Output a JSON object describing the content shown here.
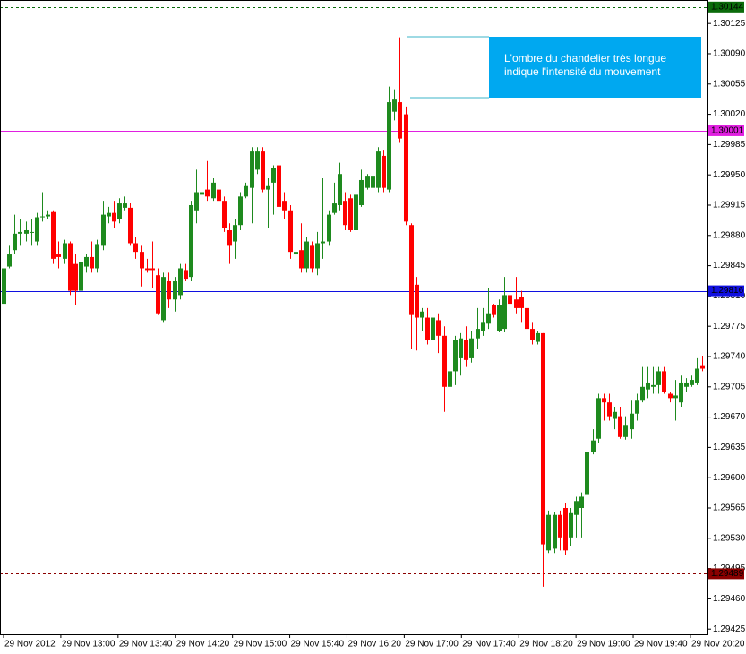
{
  "chart_data": {
    "type": "candlestick",
    "up_color": "#1e8a1e",
    "down_color": "#ff0000",
    "xlim": [
      -0.65,
      127.9
    ],
    "ylim": [
      1.29419,
      1.30149
    ],
    "xticks": [
      {
        "value": 0,
        "label": "29 Nov 2012"
      },
      {
        "value": 10.4,
        "label": "29 Nov 13:00"
      },
      {
        "value": 20.8,
        "label": "29 Nov 13:40"
      },
      {
        "value": 31.2,
        "label": "29 Nov 14:20"
      },
      {
        "value": 41.6,
        "label": "29 Nov 15:00"
      },
      {
        "value": 52,
        "label": "29 Nov 15:40"
      },
      {
        "value": 62.4,
        "label": "29 Nov 16:20"
      },
      {
        "value": 72.8,
        "label": "29 Nov 17:00"
      },
      {
        "value": 83.2,
        "label": "29 Nov 17:40"
      },
      {
        "value": 93.6,
        "label": "29 Nov 18:20"
      },
      {
        "value": 104,
        "label": "29 Nov 19:00"
      },
      {
        "value": 114.4,
        "label": "29 Nov 19:40"
      },
      {
        "value": 124.8,
        "label": "29 Nov 20:20"
      }
    ],
    "yticks": [
      {
        "value": 1.30125,
        "label": "1.30125"
      },
      {
        "value": 1.3009,
        "label": "1.30090"
      },
      {
        "value": 1.30055,
        "label": "1.30055"
      },
      {
        "value": 1.3002,
        "label": "1.30020"
      },
      {
        "value": 1.29985,
        "label": "1.29985"
      },
      {
        "value": 1.2995,
        "label": "1.29950"
      },
      {
        "value": 1.29915,
        "label": "1.29915"
      },
      {
        "value": 1.2988,
        "label": "1.29880"
      },
      {
        "value": 1.29845,
        "label": "1.29845"
      },
      {
        "value": 1.2981,
        "label": "1.29810"
      },
      {
        "value": 1.29775,
        "label": "1.29775"
      },
      {
        "value": 1.2974,
        "label": "1.29740"
      },
      {
        "value": 1.29705,
        "label": "1.29705"
      },
      {
        "value": 1.2967,
        "label": "1.29670"
      },
      {
        "value": 1.29635,
        "label": "1.29635"
      },
      {
        "value": 1.296,
        "label": "1.29600"
      },
      {
        "value": 1.29565,
        "label": "1.29565"
      },
      {
        "value": 1.2953,
        "label": "1.29530"
      },
      {
        "value": 1.29495,
        "label": "1.29495"
      },
      {
        "value": 1.2946,
        "label": "1.29460"
      },
      {
        "value": 1.29425,
        "label": "1.29425"
      }
    ],
    "levels": [
      {
        "value": 1.30144,
        "color": "#0b6b0b",
        "style": "dashed"
      },
      {
        "value": 1.30001,
        "color": "#e020e0",
        "style": "solid"
      },
      {
        "value": 1.29816,
        "color": "#1010e0",
        "style": "solid"
      },
      {
        "value": 1.29489,
        "color": "#8b0000",
        "style": "dashed"
      }
    ],
    "annotation": [
      "L'ombre du chandelier très longue",
      "indique l'intensité du mouvement"
    ],
    "open": [
      1.29801,
      1.29844,
      1.29863,
      1.29882,
      1.29882,
      1.29884,
      1.29873,
      1.29901,
      1.29902,
      1.29907,
      1.29858,
      1.29853,
      1.29871,
      1.29847,
      1.29816,
      1.29844,
      1.29855,
      1.29842,
      1.29868,
      1.29902,
      1.29906,
      1.29899,
      1.29912,
      1.29912,
      1.29871,
      1.29861,
      1.29842,
      1.29842,
      1.29834,
      1.29782,
      1.29827,
      1.29806,
      1.29811,
      1.2984,
      1.29832,
      1.29909,
      1.29927,
      1.29933,
      1.29923,
      1.29933,
      1.2992,
      1.29886,
      1.29873,
      1.29892,
      1.29925,
      1.29935,
      1.29956,
      1.29977,
      1.29933,
      1.29941,
      1.29961,
      1.2992,
      1.29909,
      1.29858,
      1.29863,
      1.29842,
      1.29868,
      1.29842,
      1.29871,
      1.29873,
      1.29906,
      1.29915,
      1.2992,
      1.29923,
      1.29886,
      1.29915,
      1.29935,
      1.29935,
      1.29935,
      1.29972,
      1.29933,
      1.30023,
      1.30034,
      1.3002,
      1.29892,
      1.29823,
      1.29785,
      1.29785,
      1.29759,
      1.29782,
      1.29764,
      1.29705,
      1.29723,
      1.29738,
      1.29759,
      1.29738,
      1.29761,
      1.2977,
      1.29778,
      1.29799,
      1.2977,
      1.29772,
      1.29811,
      1.29806,
      1.29809,
      1.29796,
      1.29772,
      1.29757,
      1.29767,
      1.29516,
      1.29518,
      1.29557,
      1.29565,
      1.29531,
      1.29557,
      1.29565,
      1.29581,
      1.2963,
      1.29645,
      1.29692,
      1.29687,
      1.29668,
      1.29671,
      1.29647,
      1.29656,
      1.29674,
      1.29689,
      1.29702,
      1.29705,
      1.29707,
      1.29723,
      1.29697,
      1.29692,
      1.29687,
      1.29705,
      1.29707,
      1.2971,
      1.2973
    ],
    "high": [
      1.29853,
      1.29868,
      1.29904,
      1.29899,
      1.29896,
      1.29899,
      1.29906,
      1.2993,
      1.29909,
      1.29909,
      1.29873,
      1.29875,
      1.29873,
      1.29858,
      1.29853,
      1.29858,
      1.29873,
      1.29875,
      1.2992,
      1.29913,
      1.2992,
      1.29923,
      1.29925,
      1.29917,
      1.29878,
      1.29868,
      1.29853,
      1.29873,
      1.29842,
      1.29837,
      1.29837,
      1.29832,
      1.29847,
      1.29847,
      1.2992,
      1.29956,
      1.29941,
      1.29966,
      1.29946,
      1.29941,
      1.29925,
      1.29894,
      1.29899,
      1.2993,
      1.29941,
      1.29982,
      1.29982,
      1.29982,
      1.29946,
      1.29961,
      1.29977,
      1.2993,
      1.29915,
      1.29873,
      1.29894,
      1.29878,
      1.29873,
      1.29884,
      1.29946,
      1.29909,
      1.29941,
      1.29964,
      1.2993,
      1.29927,
      1.29946,
      1.29956,
      1.29951,
      1.29956,
      1.29982,
      1.29979,
      1.30052,
      1.30049,
      1.30109,
      1.30029,
      1.29894,
      1.29832,
      1.29796,
      1.29796,
      1.29801,
      1.2979,
      1.29775,
      1.29728,
      1.29764,
      1.29767,
      1.29775,
      1.2977,
      1.29796,
      1.29796,
      1.29819,
      1.29801,
      1.29806,
      1.29832,
      1.29832,
      1.29832,
      1.29816,
      1.29806,
      1.2978,
      1.2977,
      1.29767,
      1.29562,
      1.2956,
      1.29562,
      1.29571,
      1.29565,
      1.29578,
      1.29583,
      1.2964,
      1.29656,
      1.29697,
      1.29697,
      1.29697,
      1.29682,
      1.29682,
      1.29671,
      1.29689,
      1.29697,
      1.29728,
      1.29728,
      1.29728,
      1.29728,
      1.29728,
      1.29699,
      1.29713,
      1.29718,
      1.29715,
      1.29718,
      1.29738,
      1.29741
    ],
    "low": [
      1.29798,
      1.29842,
      1.29858,
      1.29868,
      1.29873,
      1.29868,
      1.29868,
      1.29896,
      1.29899,
      1.29847,
      1.29842,
      1.29847,
      1.29811,
      1.29799,
      1.29811,
      1.29837,
      1.29837,
      1.29837,
      1.29863,
      1.29894,
      1.29889,
      1.29894,
      1.29909,
      1.29868,
      1.29853,
      1.29821,
      1.29837,
      1.29819,
      1.29788,
      1.2978,
      1.29796,
      1.29792,
      1.29806,
      1.29827,
      1.29827,
      1.29894,
      1.29923,
      1.2992,
      1.2992,
      1.29915,
      1.29884,
      1.29847,
      1.29853,
      1.29886,
      1.29923,
      1.29894,
      1.29951,
      1.2993,
      1.29889,
      1.29904,
      1.29899,
      1.29899,
      1.29853,
      1.29847,
      1.29837,
      1.29837,
      1.29837,
      1.29834,
      1.29853,
      1.29868,
      1.29904,
      1.29909,
      1.29886,
      1.29884,
      1.29882,
      1.29913,
      1.29933,
      1.2992,
      1.2993,
      1.2993,
      1.2993,
      1.30013,
      1.29987,
      1.29892,
      1.29749,
      1.29747,
      1.2977,
      1.29754,
      1.29754,
      1.29744,
      1.29676,
      1.29642,
      1.29707,
      1.29718,
      1.29728,
      1.29733,
      1.29749,
      1.29764,
      1.29772,
      1.29785,
      1.29768,
      1.29768,
      1.29796,
      1.2979,
      1.2978,
      1.29764,
      1.29754,
      1.29754,
      1.29474,
      1.29513,
      1.29513,
      1.29516,
      1.29511,
      1.29521,
      1.29531,
      1.29531,
      1.29565,
      1.29627,
      1.2964,
      1.29666,
      1.29666,
      1.29656,
      1.29645,
      1.29644,
      1.29645,
      1.29666,
      1.29687,
      1.29692,
      1.29697,
      1.29697,
      1.29697,
      1.29687,
      1.29666,
      1.29682,
      1.29699,
      1.29705,
      1.29707,
      1.29723
    ],
    "close": [
      1.29842,
      1.29858,
      1.29882,
      1.29884,
      1.29886,
      1.29884,
      1.29901,
      1.29902,
      1.29904,
      1.29853,
      1.29855,
      1.29871,
      1.29816,
      1.29816,
      1.29849,
      1.29855,
      1.29842,
      1.2987,
      1.29904,
      1.29906,
      1.29896,
      1.29917,
      1.29917,
      1.29871,
      1.29861,
      1.29842,
      1.2984,
      1.2984,
      1.2979,
      1.29832,
      1.29806,
      1.29827,
      1.29842,
      1.2983,
      1.29915,
      1.2993,
      1.2993,
      1.29925,
      1.29941,
      1.2992,
      1.29889,
      1.29868,
      1.29892,
      1.29925,
      1.29937,
      1.29977,
      1.29977,
      1.29933,
      1.29937,
      1.29958,
      1.29913,
      1.29909,
      1.29861,
      1.29861,
      1.29842,
      1.29873,
      1.29842,
      1.29871,
      1.29873,
      1.29904,
      1.29917,
      1.29951,
      1.29892,
      1.29886,
      1.29927,
      1.29944,
      1.29948,
      1.29948,
      1.29977,
      1.29935,
      1.30034,
      1.30037,
      1.29992,
      1.29896,
      1.29788,
      1.29785,
      1.29792,
      1.29759,
      1.29785,
      1.29764,
      1.29705,
      1.29723,
      1.29759,
      1.29761,
      1.29736,
      1.29761,
      1.29772,
      1.2978,
      1.2979,
      1.29788,
      1.29799,
      1.29811,
      1.29801,
      1.29796,
      1.29796,
      1.29772,
      1.29759,
      1.29767,
      1.29523,
      1.29557,
      1.29557,
      1.29531,
      1.29516,
      1.29559,
      1.29573,
      1.29578,
      1.2963,
      1.29643,
      1.29692,
      1.29687,
      1.29671,
      1.29676,
      1.29647,
      1.29661,
      1.29674,
      1.29689,
      1.29705,
      1.2971,
      1.29707,
      1.29723,
      1.29699,
      1.29692,
      1.29695,
      1.2971,
      1.2971,
      1.29713,
      1.29726,
      1.29726
    ]
  }
}
